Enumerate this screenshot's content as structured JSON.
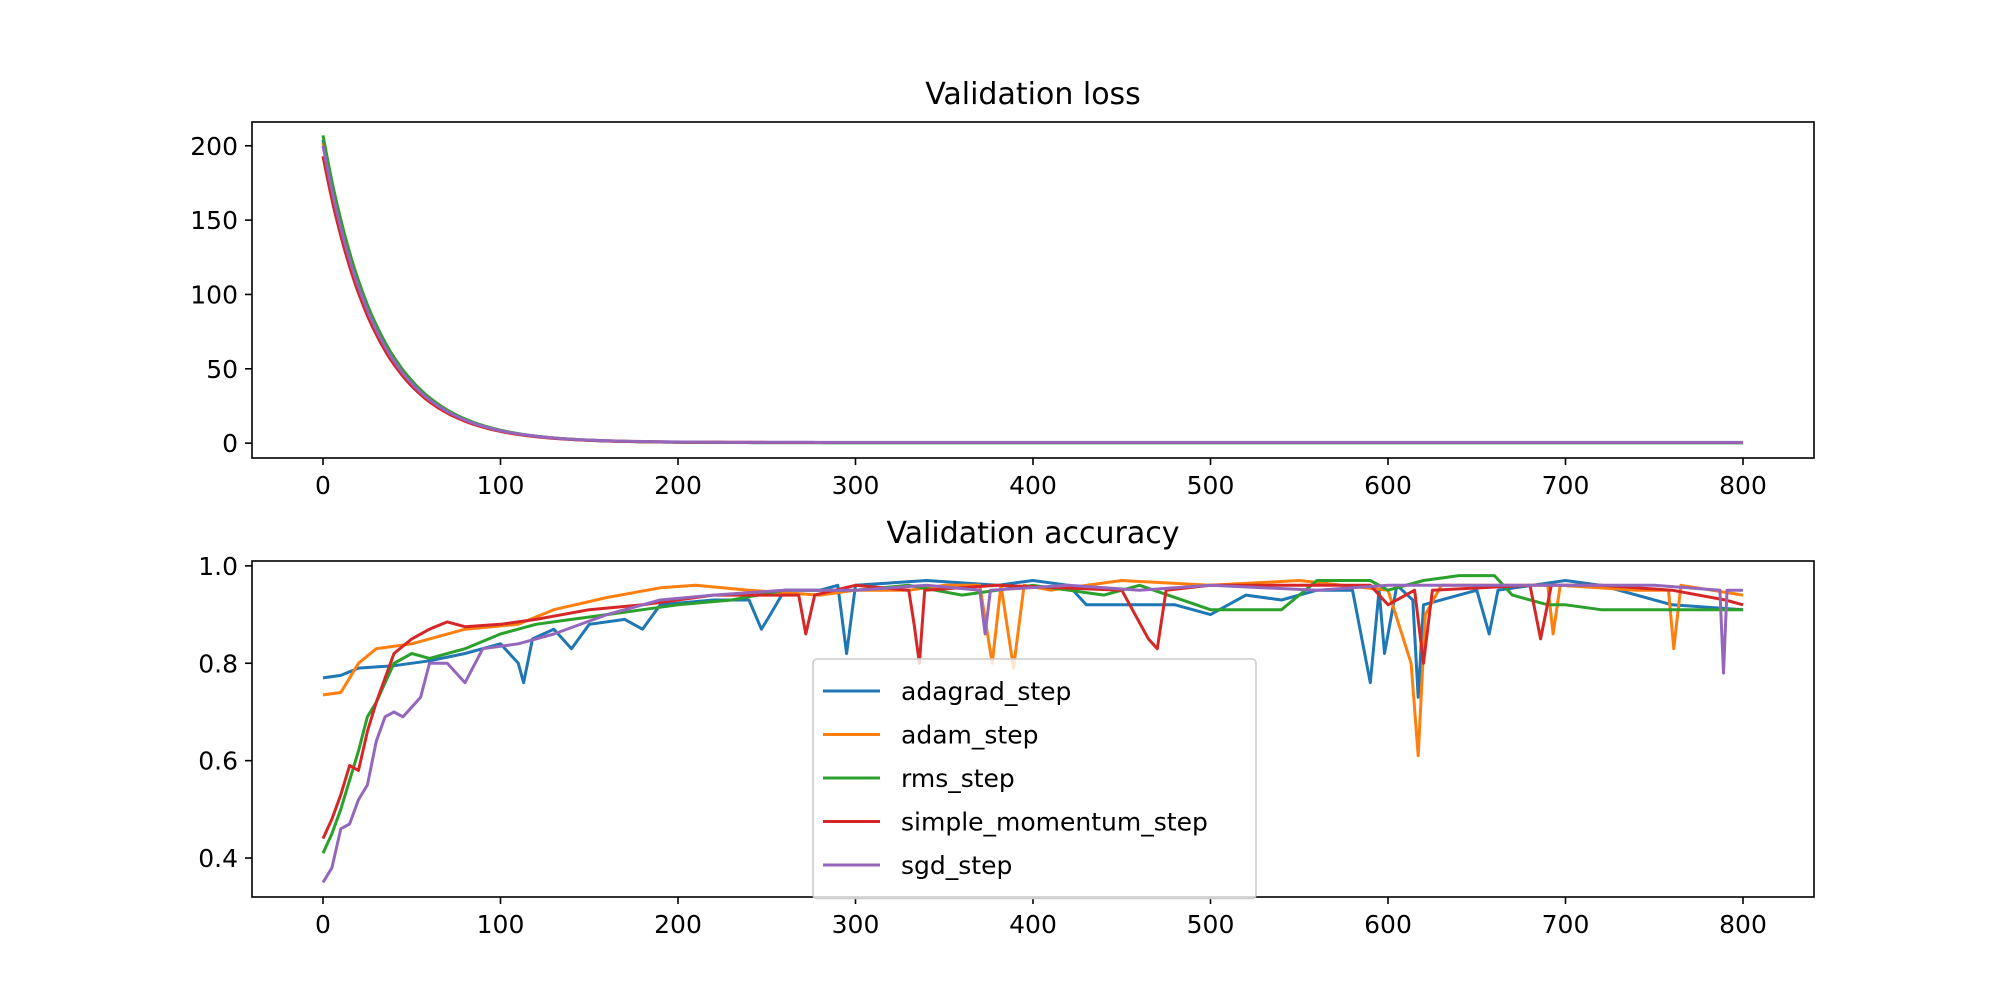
{
  "chart_data": [
    {
      "type": "line",
      "title": "Validation loss",
      "xlabel": "",
      "ylabel": "",
      "xlim": [
        -40,
        840
      ],
      "ylim": [
        -10,
        216
      ],
      "x_ticks": [
        0,
        100,
        200,
        300,
        400,
        500,
        600,
        700,
        800
      ],
      "y_ticks": [
        0,
        50,
        100,
        150,
        200
      ],
      "x_range": [
        0,
        800
      ],
      "grid": false,
      "legend": null,
      "series": [
        {
          "key": "adagrad_step",
          "color": "#1f77b4",
          "start": 204,
          "decay": 0.0322,
          "floor": 0.3
        },
        {
          "key": "adam_step",
          "color": "#ff7f0e",
          "start": 202,
          "decay": 0.0323,
          "floor": 0.4
        },
        {
          "key": "rms_step",
          "color": "#2ca02c",
          "start": 207,
          "decay": 0.032,
          "floor": 0.3
        },
        {
          "key": "simple_momentum_step",
          "color": "#d62728",
          "start": 193,
          "decay": 0.0325,
          "floor": 0.4
        },
        {
          "key": "sgd_step",
          "color": "#9467bd",
          "start": 200,
          "decay": 0.0323,
          "floor": 0.5
        }
      ]
    },
    {
      "type": "line",
      "title": "Validation accuracy",
      "xlabel": "",
      "ylabel": "",
      "xlim": [
        -40,
        840
      ],
      "ylim": [
        0.32,
        1.01
      ],
      "x_ticks": [
        0,
        100,
        200,
        300,
        400,
        500,
        600,
        700,
        800
      ],
      "y_ticks": [
        0.4,
        0.6,
        0.8,
        1.0
      ],
      "y_tick_labels": [
        "0.4",
        "0.6",
        "0.8",
        "1.0"
      ],
      "grid": false,
      "legend": "center",
      "series": [
        {
          "name": "adagrad_step",
          "color": "#1f77b4",
          "points": [
            [
              0,
              0.77
            ],
            [
              10,
              0.775
            ],
            [
              20,
              0.79
            ],
            [
              40,
              0.795
            ],
            [
              60,
              0.805
            ],
            [
              80,
              0.82
            ],
            [
              100,
              0.84
            ],
            [
              110,
              0.8
            ],
            [
              113,
              0.76
            ],
            [
              118,
              0.85
            ],
            [
              130,
              0.87
            ],
            [
              140,
              0.83
            ],
            [
              150,
              0.88
            ],
            [
              170,
              0.89
            ],
            [
              180,
              0.87
            ],
            [
              190,
              0.92
            ],
            [
              220,
              0.93
            ],
            [
              240,
              0.93
            ],
            [
              247,
              0.87
            ],
            [
              252,
              0.9
            ],
            [
              260,
              0.95
            ],
            [
              280,
              0.95
            ],
            [
              290,
              0.96
            ],
            [
              295,
              0.82
            ],
            [
              300,
              0.96
            ],
            [
              340,
              0.97
            ],
            [
              380,
              0.96
            ],
            [
              400,
              0.97
            ],
            [
              420,
              0.96
            ],
            [
              430,
              0.92
            ],
            [
              480,
              0.92
            ],
            [
              500,
              0.9
            ],
            [
              520,
              0.94
            ],
            [
              540,
              0.93
            ],
            [
              560,
              0.95
            ],
            [
              580,
              0.95
            ],
            [
              590,
              0.76
            ],
            [
              595,
              0.95
            ],
            [
              598,
              0.82
            ],
            [
              605,
              0.96
            ],
            [
              614,
              0.93
            ],
            [
              617,
              0.73
            ],
            [
              620,
              0.92
            ],
            [
              650,
              0.95
            ],
            [
              657,
              0.86
            ],
            [
              662,
              0.95
            ],
            [
              700,
              0.97
            ],
            [
              720,
              0.96
            ],
            [
              760,
              0.92
            ],
            [
              800,
              0.91
            ]
          ]
        },
        {
          "name": "adam_step",
          "color": "#ff7f0e",
          "points": [
            [
              0,
              0.735
            ],
            [
              10,
              0.74
            ],
            [
              20,
              0.8
            ],
            [
              30,
              0.83
            ],
            [
              50,
              0.84
            ],
            [
              80,
              0.87
            ],
            [
              110,
              0.88
            ],
            [
              130,
              0.91
            ],
            [
              160,
              0.935
            ],
            [
              190,
              0.955
            ],
            [
              210,
              0.96
            ],
            [
              240,
              0.95
            ],
            [
              280,
              0.94
            ],
            [
              300,
              0.95
            ],
            [
              330,
              0.95
            ],
            [
              350,
              0.96
            ],
            [
              370,
              0.96
            ],
            [
              377,
              0.8
            ],
            [
              382,
              0.96
            ],
            [
              389,
              0.79
            ],
            [
              395,
              0.96
            ],
            [
              410,
              0.95
            ],
            [
              450,
              0.97
            ],
            [
              500,
              0.96
            ],
            [
              550,
              0.97
            ],
            [
              600,
              0.95
            ],
            [
              613,
              0.8
            ],
            [
              617,
              0.61
            ],
            [
              621,
              0.9
            ],
            [
              630,
              0.96
            ],
            [
              690,
              0.96
            ],
            [
              693,
              0.86
            ],
            [
              697,
              0.96
            ],
            [
              740,
              0.95
            ],
            [
              758,
              0.95
            ],
            [
              761,
              0.83
            ],
            [
              765,
              0.96
            ],
            [
              800,
              0.94
            ]
          ]
        },
        {
          "name": "rms_step",
          "color": "#2ca02c",
          "points": [
            [
              0,
              0.41
            ],
            [
              5,
              0.45
            ],
            [
              10,
              0.5
            ],
            [
              20,
              0.62
            ],
            [
              25,
              0.69
            ],
            [
              30,
              0.72
            ],
            [
              35,
              0.76
            ],
            [
              40,
              0.8
            ],
            [
              50,
              0.82
            ],
            [
              60,
              0.81
            ],
            [
              80,
              0.83
            ],
            [
              100,
              0.86
            ],
            [
              120,
              0.88
            ],
            [
              140,
              0.89
            ],
            [
              160,
              0.9
            ],
            [
              180,
              0.91
            ],
            [
              200,
              0.92
            ],
            [
              230,
              0.93
            ],
            [
              260,
              0.95
            ],
            [
              300,
              0.95
            ],
            [
              330,
              0.96
            ],
            [
              360,
              0.94
            ],
            [
              400,
              0.96
            ],
            [
              420,
              0.95
            ],
            [
              440,
              0.94
            ],
            [
              460,
              0.96
            ],
            [
              500,
              0.91
            ],
            [
              540,
              0.91
            ],
            [
              560,
              0.97
            ],
            [
              590,
              0.97
            ],
            [
              600,
              0.95
            ],
            [
              620,
              0.97
            ],
            [
              640,
              0.98
            ],
            [
              660,
              0.98
            ],
            [
              670,
              0.94
            ],
            [
              690,
              0.92
            ],
            [
              700,
              0.92
            ],
            [
              720,
              0.91
            ],
            [
              800,
              0.91
            ]
          ]
        },
        {
          "name": "simple_momentum_step",
          "color": "#d62728",
          "points": [
            [
              0,
              0.44
            ],
            [
              5,
              0.48
            ],
            [
              10,
              0.53
            ],
            [
              15,
              0.59
            ],
            [
              20,
              0.58
            ],
            [
              25,
              0.66
            ],
            [
              30,
              0.72
            ],
            [
              40,
              0.82
            ],
            [
              50,
              0.85
            ],
            [
              60,
              0.87
            ],
            [
              70,
              0.885
            ],
            [
              80,
              0.875
            ],
            [
              100,
              0.88
            ],
            [
              120,
              0.89
            ],
            [
              150,
              0.91
            ],
            [
              180,
              0.92
            ],
            [
              220,
              0.94
            ],
            [
              250,
              0.94
            ],
            [
              268,
              0.94
            ],
            [
              272,
              0.86
            ],
            [
              277,
              0.94
            ],
            [
              300,
              0.96
            ],
            [
              330,
              0.95
            ],
            [
              333,
              0.88
            ],
            [
              336,
              0.8
            ],
            [
              339,
              0.95
            ],
            [
              380,
              0.96
            ],
            [
              450,
              0.95
            ],
            [
              465,
              0.85
            ],
            [
              470,
              0.83
            ],
            [
              475,
              0.95
            ],
            [
              500,
              0.96
            ],
            [
              560,
              0.96
            ],
            [
              590,
              0.96
            ],
            [
              600,
              0.92
            ],
            [
              615,
              0.95
            ],
            [
              620,
              0.8
            ],
            [
              625,
              0.95
            ],
            [
              680,
              0.96
            ],
            [
              686,
              0.85
            ],
            [
              692,
              0.96
            ],
            [
              720,
              0.96
            ],
            [
              760,
              0.95
            ],
            [
              790,
              0.93
            ],
            [
              800,
              0.92
            ]
          ]
        },
        {
          "name": "sgd_step",
          "color": "#9467bd",
          "points": [
            [
              0,
              0.35
            ],
            [
              5,
              0.38
            ],
            [
              10,
              0.46
            ],
            [
              15,
              0.47
            ],
            [
              20,
              0.52
            ],
            [
              25,
              0.55
            ],
            [
              30,
              0.64
            ],
            [
              35,
              0.69
            ],
            [
              40,
              0.7
            ],
            [
              45,
              0.69
            ],
            [
              50,
              0.71
            ],
            [
              55,
              0.73
            ],
            [
              60,
              0.8
            ],
            [
              70,
              0.8
            ],
            [
              80,
              0.76
            ],
            [
              90,
              0.83
            ],
            [
              110,
              0.84
            ],
            [
              130,
              0.86
            ],
            [
              160,
              0.9
            ],
            [
              190,
              0.93
            ],
            [
              220,
              0.94
            ],
            [
              260,
              0.95
            ],
            [
              300,
              0.95
            ],
            [
              340,
              0.96
            ],
            [
              370,
              0.95
            ],
            [
              373,
              0.86
            ],
            [
              376,
              0.95
            ],
            [
              420,
              0.96
            ],
            [
              460,
              0.95
            ],
            [
              500,
              0.96
            ],
            [
              560,
              0.95
            ],
            [
              600,
              0.96
            ],
            [
              650,
              0.96
            ],
            [
              700,
              0.96
            ],
            [
              750,
              0.96
            ],
            [
              787,
              0.95
            ],
            [
              789,
              0.78
            ],
            [
              791,
              0.95
            ],
            [
              800,
              0.95
            ]
          ]
        }
      ]
    }
  ]
}
